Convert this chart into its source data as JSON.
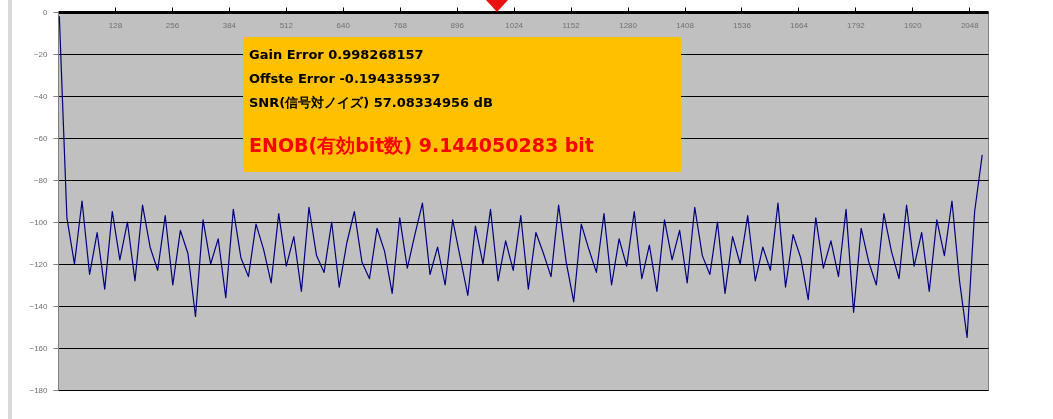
{
  "chart_data": {
    "type": "line",
    "xlim": [
      0,
      2090
    ],
    "xticks": [
      128,
      256,
      384,
      512,
      640,
      768,
      896,
      1024,
      1152,
      1280,
      1408,
      1536,
      1664,
      1792,
      1920,
      2048
    ],
    "ylim": [
      -180,
      0
    ],
    "yticks": [
      0,
      -20,
      -40,
      -60,
      -80,
      -100,
      -120,
      -140,
      -160,
      -180
    ],
    "grid": "y",
    "marker": "none",
    "line_style": "solid",
    "annotations": [
      "Gain Error 0.998268157",
      "Offste Error -0.194335937",
      "SNR(信号対ノイズ) 57.08334956 dB",
      "ENOB(有効bit数) 9.144050283 bit"
    ],
    "series": [
      {
        "color": "#000080",
        "x": [
          3,
          20,
          37,
          54,
          71,
          88,
          105,
          122,
          139,
          156,
          173,
          190,
          207,
          224,
          241,
          258,
          275,
          292,
          309,
          326,
          343,
          360,
          377,
          394,
          411,
          428,
          445,
          462,
          479,
          496,
          513,
          530,
          547,
          564,
          581,
          598,
          615,
          632,
          649,
          666,
          683,
          700,
          717,
          734,
          751,
          768,
          785,
          802,
          819,
          836,
          853,
          870,
          887,
          904,
          921,
          938,
          955,
          972,
          989,
          1006,
          1023,
          1040,
          1057,
          1074,
          1091,
          1108,
          1125,
          1142,
          1159,
          1176,
          1193,
          1210,
          1227,
          1244,
          1261,
          1278,
          1295,
          1312,
          1329,
          1346,
          1363,
          1380,
          1397,
          1414,
          1431,
          1448,
          1465,
          1482,
          1499,
          1516,
          1533,
          1550,
          1567,
          1584,
          1601,
          1618,
          1635,
          1652,
          1669,
          1686,
          1703,
          1720,
          1737,
          1754,
          1771,
          1788,
          1805,
          1822,
          1839,
          1856,
          1873,
          1890,
          1907,
          1924,
          1941,
          1958,
          1975,
          1992,
          2009,
          2026,
          2043,
          2060,
          2077
        ],
        "values": [
          -2,
          -98,
          -120,
          -90,
          -125,
          -105,
          -132,
          -95,
          -118,
          -100,
          -128,
          -92,
          -112,
          -123,
          -97,
          -130,
          -104,
          -115,
          -145,
          -99,
          -120,
          -108,
          -136,
          -94,
          -117,
          -126,
          -101,
          -113,
          -129,
          -96,
          -121,
          -107,
          -133,
          -93,
          -116,
          -124,
          -100,
          -131,
          -110,
          -95,
          -119,
          -127,
          -103,
          -114,
          -134,
          -98,
          -122,
          -106,
          -91,
          -125,
          -112,
          -130,
          -99,
          -117,
          -135,
          -102,
          -120,
          -94,
          -128,
          -109,
          -123,
          -97,
          -132,
          -105,
          -115,
          -126,
          -92,
          -119,
          -138,
          -101,
          -113,
          -124,
          -96,
          -130,
          -108,
          -121,
          -95,
          -127,
          -111,
          -133,
          -99,
          -118,
          -104,
          -129,
          -93,
          -116,
          -125,
          -100,
          -134,
          -107,
          -120,
          -97,
          -128,
          -112,
          -123,
          -91,
          -131,
          -106,
          -117,
          -137,
          -98,
          -122,
          -109,
          -126,
          -94,
          -143,
          -103,
          -119,
          -130,
          -96,
          -114,
          -127,
          -92,
          -121,
          -105,
          -133,
          -99,
          -116,
          -90,
          -128,
          -155,
          -95,
          -68
        ]
      }
    ]
  }
}
